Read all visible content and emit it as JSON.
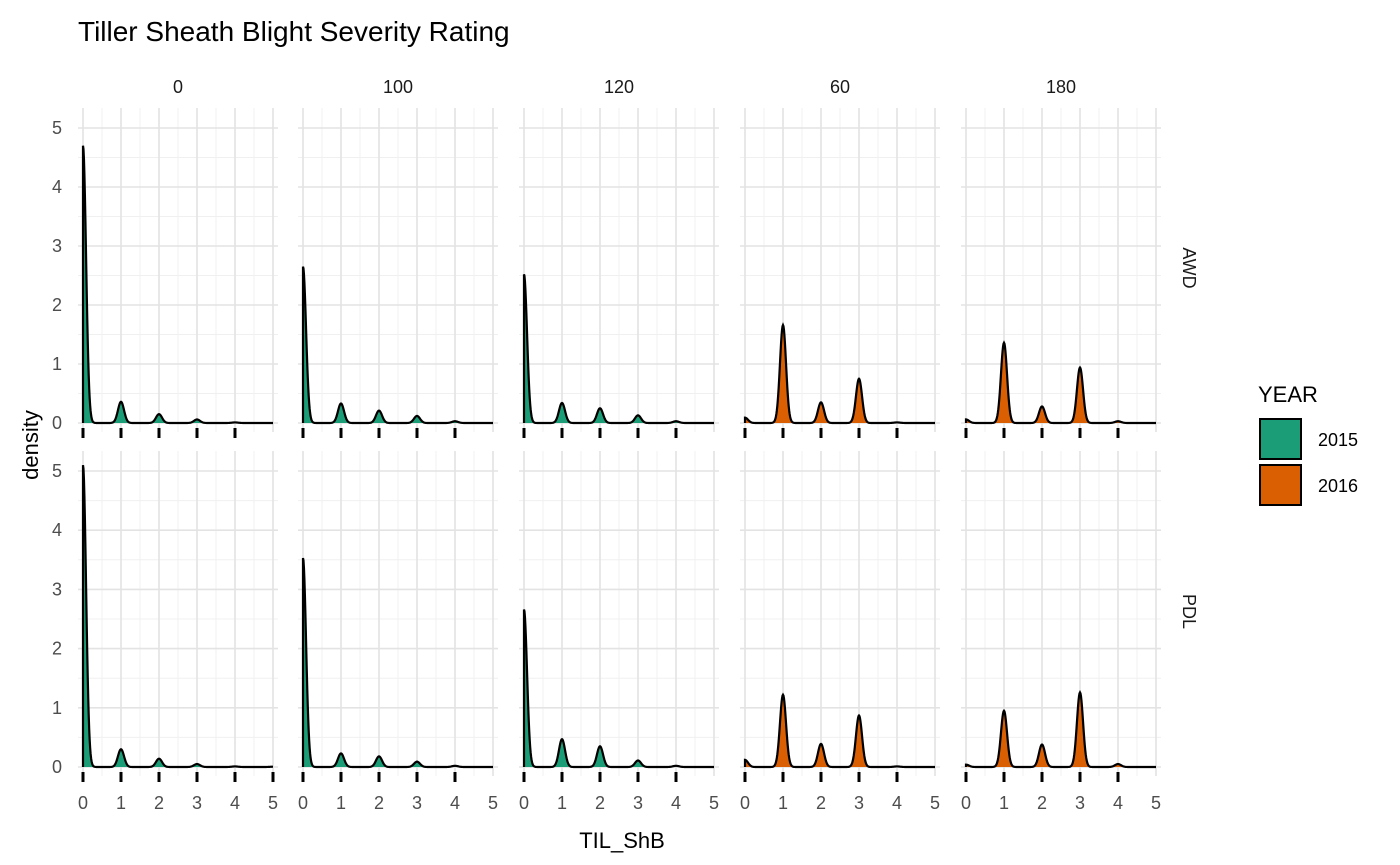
{
  "chart_data": {
    "type": "area",
    "subtype": "faceted density",
    "title": "Tiller Sheath Blight Severity Rating",
    "xlabel": "TIL_ShB",
    "ylabel": "density",
    "xlim": [
      0,
      5
    ],
    "ylim": [
      0,
      5
    ],
    "x_ticks": [
      "0",
      "1",
      "2",
      "3",
      "4",
      "5"
    ],
    "y_ticks": [
      "0",
      "1",
      "2",
      "3",
      "4",
      "5"
    ],
    "grid": true,
    "columns": [
      "0",
      "100",
      "120",
      "60",
      "180"
    ],
    "rows": [
      "AWD",
      "PDL"
    ],
    "legend": {
      "title": "YEAR",
      "position": "right",
      "items": [
        {
          "label": "2015",
          "color": "#1b9e77"
        },
        {
          "label": "2016",
          "color": "#d95f02"
        }
      ]
    },
    "bandwidth": 0.08,
    "panels": [
      {
        "row": "AWD",
        "column": "0",
        "year": "2015",
        "rug": [
          0,
          1,
          2,
          3,
          4
        ],
        "peaks": [
          {
            "x": 0,
            "y": 4.7
          },
          {
            "x": 1,
            "y": 0.36
          },
          {
            "x": 2,
            "y": 0.15
          },
          {
            "x": 3,
            "y": 0.06
          },
          {
            "x": 4,
            "y": 0.01
          }
        ]
      },
      {
        "row": "AWD",
        "column": "100",
        "year": "2015",
        "rug": [
          0,
          1,
          2,
          3,
          4
        ],
        "peaks": [
          {
            "x": 0,
            "y": 2.65
          },
          {
            "x": 1,
            "y": 0.33
          },
          {
            "x": 2,
            "y": 0.21
          },
          {
            "x": 3,
            "y": 0.12
          },
          {
            "x": 4,
            "y": 0.03
          }
        ]
      },
      {
        "row": "AWD",
        "column": "120",
        "year": "2015",
        "rug": [
          0,
          1,
          2,
          3,
          4
        ],
        "peaks": [
          {
            "x": 0,
            "y": 2.52
          },
          {
            "x": 1,
            "y": 0.34
          },
          {
            "x": 2,
            "y": 0.25
          },
          {
            "x": 3,
            "y": 0.13
          },
          {
            "x": 4,
            "y": 0.03
          }
        ]
      },
      {
        "row": "AWD",
        "column": "60",
        "year": "2016",
        "rug": [
          0,
          1,
          2,
          3,
          4
        ],
        "peaks": [
          {
            "x": 0,
            "y": 0.09
          },
          {
            "x": 1,
            "y": 1.66
          },
          {
            "x": 2,
            "y": 0.35
          },
          {
            "x": 3,
            "y": 0.75
          },
          {
            "x": 4,
            "y": 0.01
          }
        ]
      },
      {
        "row": "AWD",
        "column": "180",
        "year": "2016",
        "rug": [
          0,
          1,
          2,
          3,
          4
        ],
        "peaks": [
          {
            "x": 0,
            "y": 0.06
          },
          {
            "x": 1,
            "y": 1.36
          },
          {
            "x": 2,
            "y": 0.28
          },
          {
            "x": 3,
            "y": 0.94
          },
          {
            "x": 4,
            "y": 0.03
          }
        ]
      },
      {
        "row": "PDL",
        "column": "0",
        "year": "2015",
        "rug": [
          0,
          1,
          2,
          3,
          4,
          5
        ],
        "peaks": [
          {
            "x": 0,
            "y": 5.1
          },
          {
            "x": 1,
            "y": 0.3
          },
          {
            "x": 2,
            "y": 0.14
          },
          {
            "x": 3,
            "y": 0.05
          },
          {
            "x": 4,
            "y": 0.01
          },
          {
            "x": 5,
            "y": 0.005
          }
        ]
      },
      {
        "row": "PDL",
        "column": "100",
        "year": "2015",
        "rug": [
          0,
          1,
          2,
          3,
          4
        ],
        "peaks": [
          {
            "x": 0,
            "y": 3.53
          },
          {
            "x": 1,
            "y": 0.23
          },
          {
            "x": 2,
            "y": 0.18
          },
          {
            "x": 3,
            "y": 0.09
          },
          {
            "x": 4,
            "y": 0.02
          }
        ]
      },
      {
        "row": "PDL",
        "column": "120",
        "year": "2015",
        "rug": [
          0,
          1,
          2,
          3,
          4
        ],
        "peaks": [
          {
            "x": 0,
            "y": 2.66
          },
          {
            "x": 1,
            "y": 0.47
          },
          {
            "x": 2,
            "y": 0.35
          },
          {
            "x": 3,
            "y": 0.11
          },
          {
            "x": 4,
            "y": 0.02
          }
        ]
      },
      {
        "row": "PDL",
        "column": "60",
        "year": "2016",
        "rug": [
          0,
          1,
          2,
          3,
          4
        ],
        "peaks": [
          {
            "x": 0,
            "y": 0.12
          },
          {
            "x": 1,
            "y": 1.22
          },
          {
            "x": 2,
            "y": 0.39
          },
          {
            "x": 3,
            "y": 0.87
          },
          {
            "x": 4,
            "y": 0.01
          }
        ]
      },
      {
        "row": "PDL",
        "column": "180",
        "year": "2016",
        "rug": [
          0,
          1,
          2,
          3,
          4
        ],
        "peaks": [
          {
            "x": 0,
            "y": 0.04
          },
          {
            "x": 1,
            "y": 0.95
          },
          {
            "x": 2,
            "y": 0.38
          },
          {
            "x": 3,
            "y": 1.26
          },
          {
            "x": 4,
            "y": 0.05
          }
        ]
      }
    ]
  }
}
